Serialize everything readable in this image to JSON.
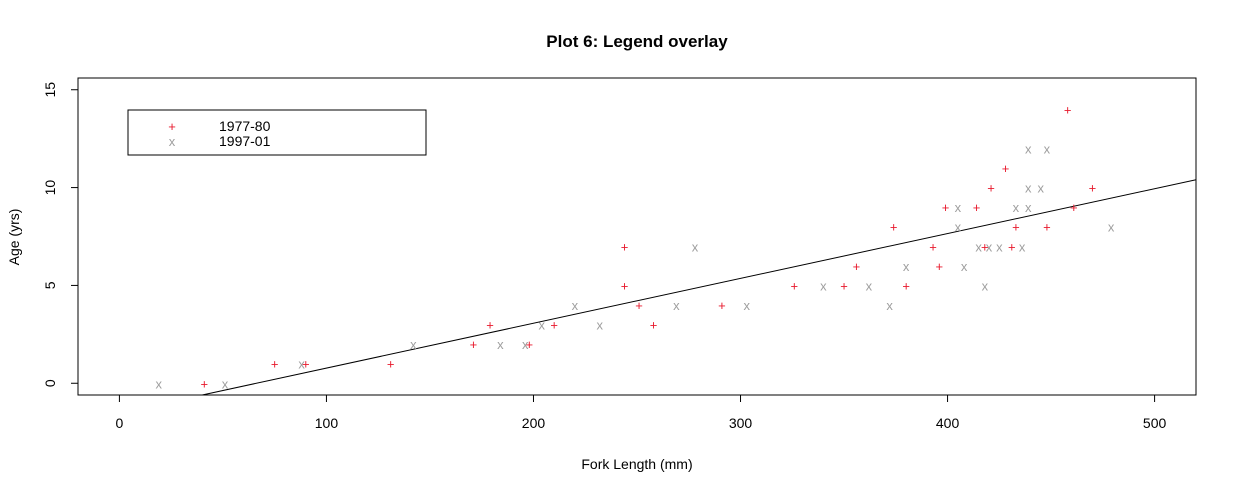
{
  "chart_data": {
    "type": "scatter",
    "title": "Plot 6: Legend overlay",
    "xlabel": "Fork Length (mm)",
    "ylabel": "Age (yrs)",
    "xlim": [
      -20,
      520
    ],
    "ylim": [
      -0.6,
      15.6
    ],
    "xticks": [
      0,
      100,
      200,
      300,
      400,
      500
    ],
    "yticks": [
      0,
      5,
      10,
      15
    ],
    "legend": {
      "position": "top-left",
      "box": true
    },
    "series": [
      {
        "name": "1977-80",
        "color": "#e8192c",
        "marker": "+",
        "points": [
          [
            41,
            0
          ],
          [
            75,
            1
          ],
          [
            90,
            1
          ],
          [
            131,
            1
          ],
          [
            171,
            2
          ],
          [
            179,
            3
          ],
          [
            198,
            2
          ],
          [
            210,
            3
          ],
          [
            244,
            7
          ],
          [
            244,
            5
          ],
          [
            251,
            4
          ],
          [
            258,
            3
          ],
          [
            291,
            4
          ],
          [
            326,
            5
          ],
          [
            350,
            5
          ],
          [
            356,
            6
          ],
          [
            374,
            8
          ],
          [
            380,
            5
          ],
          [
            393,
            7
          ],
          [
            396,
            6
          ],
          [
            399,
            9
          ],
          [
            414,
            9
          ],
          [
            418,
            7
          ],
          [
            421,
            10
          ],
          [
            428,
            11
          ],
          [
            431,
            7
          ],
          [
            433,
            8
          ],
          [
            448,
            8
          ],
          [
            458,
            14
          ],
          [
            461,
            9
          ],
          [
            470,
            10
          ]
        ]
      },
      {
        "name": "1997-01",
        "color": "#9e9e9e",
        "marker": "x",
        "points": [
          [
            19,
            0
          ],
          [
            51,
            0
          ],
          [
            88,
            1
          ],
          [
            142,
            2
          ],
          [
            184,
            2
          ],
          [
            196,
            2
          ],
          [
            204,
            3
          ],
          [
            220,
            4
          ],
          [
            232,
            3
          ],
          [
            269,
            4
          ],
          [
            278,
            7
          ],
          [
            303,
            4
          ],
          [
            340,
            5
          ],
          [
            362,
            5
          ],
          [
            372,
            4
          ],
          [
            380,
            6
          ],
          [
            405,
            9
          ],
          [
            405,
            8
          ],
          [
            408,
            6
          ],
          [
            415,
            7
          ],
          [
            418,
            5
          ],
          [
            420,
            7
          ],
          [
            425,
            7
          ],
          [
            433,
            9
          ],
          [
            436,
            7
          ],
          [
            439,
            12
          ],
          [
            439,
            10
          ],
          [
            439,
            9
          ],
          [
            445,
            10
          ],
          [
            448,
            12
          ],
          [
            479,
            8
          ]
        ]
      }
    ],
    "fit_line": {
      "color": "#000000",
      "from": [
        40,
        -0.6
      ],
      "to": [
        520,
        10.4
      ]
    }
  }
}
